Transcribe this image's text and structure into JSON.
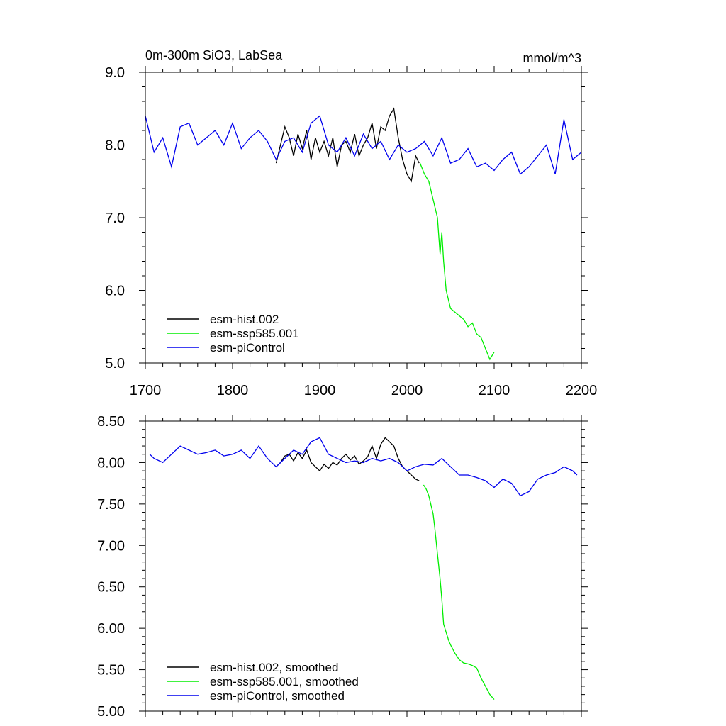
{
  "chart_data": [
    {
      "type": "line",
      "title": "0m-300m SiO3, LabSea",
      "units": "mmol/m^3",
      "xlim": [
        1700,
        2200
      ],
      "ylim": [
        5.0,
        9.0
      ],
      "x_ticks": [
        1700,
        1800,
        1900,
        2000,
        2100,
        2200
      ],
      "x_tick_labels": [
        "1700",
        "1800",
        "1900",
        "2000",
        "2100",
        "2200"
      ],
      "y_ticks": [
        5.0,
        6.0,
        7.0,
        8.0,
        9.0
      ],
      "y_tick_labels": [
        "5.0",
        "6.0",
        "7.0",
        "8.0",
        "9.0"
      ],
      "legend_position": "bottom-left",
      "series": [
        {
          "name": "esm-hist.002",
          "color": "#000000",
          "x": [
            1850,
            1855,
            1860,
            1865,
            1870,
            1875,
            1880,
            1885,
            1890,
            1895,
            1900,
            1905,
            1910,
            1915,
            1920,
            1925,
            1930,
            1935,
            1940,
            1945,
            1950,
            1955,
            1960,
            1965,
            1970,
            1975,
            1980,
            1985,
            1990,
            1995,
            2000,
            2005,
            2010,
            2014
          ],
          "values": [
            7.75,
            8.0,
            8.25,
            8.1,
            7.85,
            8.15,
            7.95,
            8.2,
            7.8,
            8.1,
            7.9,
            8.05,
            7.85,
            8.1,
            7.7,
            8.0,
            8.05,
            7.9,
            8.15,
            7.85,
            8.0,
            8.1,
            8.3,
            7.95,
            8.25,
            8.2,
            8.4,
            8.5,
            8.1,
            7.8,
            7.6,
            7.5,
            7.85,
            7.75
          ]
        },
        {
          "name": "esm-ssp585.001",
          "color": "#00ee00",
          "x": [
            2015,
            2020,
            2025,
            2030,
            2035,
            2038,
            2040,
            2042,
            2045,
            2048,
            2050,
            2055,
            2060,
            2065,
            2070,
            2075,
            2080,
            2085,
            2090,
            2095,
            2100
          ],
          "values": [
            7.75,
            7.6,
            7.5,
            7.25,
            7.0,
            6.5,
            6.8,
            6.4,
            6.0,
            5.85,
            5.75,
            5.7,
            5.65,
            5.6,
            5.5,
            5.55,
            5.4,
            5.35,
            5.2,
            5.05,
            5.15
          ]
        },
        {
          "name": "esm-piControl",
          "color": "#0000ee",
          "x": [
            1700,
            1710,
            1720,
            1730,
            1740,
            1750,
            1760,
            1770,
            1780,
            1790,
            1800,
            1810,
            1820,
            1830,
            1840,
            1850,
            1860,
            1870,
            1880,
            1890,
            1900,
            1910,
            1920,
            1930,
            1940,
            1950,
            1960,
            1970,
            1980,
            1990,
            2000,
            2010,
            2020,
            2030,
            2040,
            2050,
            2060,
            2070,
            2080,
            2090,
            2100,
            2110,
            2120,
            2130,
            2140,
            2150,
            2160,
            2170,
            2180,
            2190,
            2200
          ],
          "values": [
            8.4,
            7.9,
            8.1,
            7.7,
            8.25,
            8.3,
            8.0,
            8.1,
            8.2,
            8.0,
            8.3,
            7.95,
            8.1,
            8.2,
            8.05,
            7.8,
            8.05,
            8.1,
            7.9,
            8.3,
            8.4,
            8.0,
            7.9,
            8.1,
            7.85,
            8.15,
            7.95,
            8.05,
            7.8,
            8.0,
            7.9,
            7.95,
            8.05,
            7.85,
            8.1,
            7.75,
            7.8,
            7.95,
            7.7,
            7.75,
            7.65,
            7.8,
            7.9,
            7.6,
            7.7,
            7.85,
            8.0,
            7.6,
            8.35,
            7.8,
            7.9
          ]
        }
      ]
    },
    {
      "type": "line",
      "title": "",
      "xlim": [
        1700,
        2200
      ],
      "ylim": [
        5.0,
        8.5
      ],
      "y_ticks": [
        5.0,
        5.5,
        6.0,
        6.5,
        7.0,
        7.5,
        8.0,
        8.5
      ],
      "y_tick_labels": [
        "5.00",
        "5.50",
        "6.00",
        "6.50",
        "7.00",
        "7.50",
        "8.00",
        "8.50"
      ],
      "legend_position": "bottom-left",
      "series": [
        {
          "name": "esm-hist.002, smoothed",
          "color": "#000000",
          "x": [
            1850,
            1855,
            1860,
            1865,
            1870,
            1875,
            1880,
            1885,
            1890,
            1895,
            1900,
            1905,
            1910,
            1915,
            1920,
            1925,
            1930,
            1935,
            1940,
            1945,
            1950,
            1955,
            1960,
            1965,
            1970,
            1975,
            1980,
            1985,
            1990,
            1995,
            2000,
            2005,
            2010,
            2014
          ],
          "values": [
            7.95,
            8.0,
            8.08,
            8.1,
            8.02,
            8.12,
            8.05,
            8.15,
            8.0,
            7.95,
            7.9,
            7.98,
            7.93,
            8.0,
            7.97,
            8.05,
            8.1,
            8.03,
            8.08,
            7.98,
            8.02,
            8.07,
            8.2,
            8.05,
            8.22,
            8.3,
            8.25,
            8.2,
            8.05,
            7.95,
            7.9,
            7.85,
            7.8,
            7.78
          ]
        },
        {
          "name": "esm-ssp585.001, smoothed",
          "color": "#00ee00",
          "x": [
            2019,
            2022,
            2025,
            2030,
            2032,
            2035,
            2038,
            2040,
            2042,
            2045,
            2048,
            2050,
            2055,
            2060,
            2065,
            2070,
            2075,
            2080,
            2085,
            2090,
            2095,
            2100
          ],
          "values": [
            7.73,
            7.68,
            7.6,
            7.38,
            7.2,
            6.9,
            6.6,
            6.35,
            6.05,
            5.95,
            5.85,
            5.8,
            5.7,
            5.62,
            5.58,
            5.57,
            5.55,
            5.52,
            5.4,
            5.3,
            5.2,
            5.14
          ]
        },
        {
          "name": "esm-piControl, smoothed",
          "color": "#0000ee",
          "x": [
            1705,
            1710,
            1720,
            1730,
            1740,
            1750,
            1760,
            1770,
            1780,
            1790,
            1800,
            1810,
            1820,
            1830,
            1840,
            1850,
            1860,
            1870,
            1880,
            1890,
            1900,
            1910,
            1920,
            1930,
            1940,
            1950,
            1960,
            1970,
            1980,
            1990,
            2000,
            2010,
            2020,
            2030,
            2040,
            2050,
            2060,
            2070,
            2080,
            2090,
            2100,
            2110,
            2120,
            2130,
            2140,
            2150,
            2160,
            2170,
            2180,
            2190,
            2195
          ],
          "values": [
            8.1,
            8.05,
            8.0,
            8.1,
            8.2,
            8.15,
            8.1,
            8.12,
            8.15,
            8.08,
            8.1,
            8.15,
            8.05,
            8.2,
            8.05,
            7.95,
            8.05,
            8.15,
            8.1,
            8.25,
            8.3,
            8.1,
            8.05,
            8.0,
            8.02,
            8.0,
            8.05,
            8.02,
            8.05,
            8.0,
            7.9,
            7.95,
            7.98,
            7.97,
            8.05,
            7.95,
            7.85,
            7.85,
            7.82,
            7.78,
            7.7,
            7.8,
            7.75,
            7.6,
            7.65,
            7.8,
            7.85,
            7.88,
            7.95,
            7.9,
            7.85
          ]
        }
      ]
    }
  ]
}
